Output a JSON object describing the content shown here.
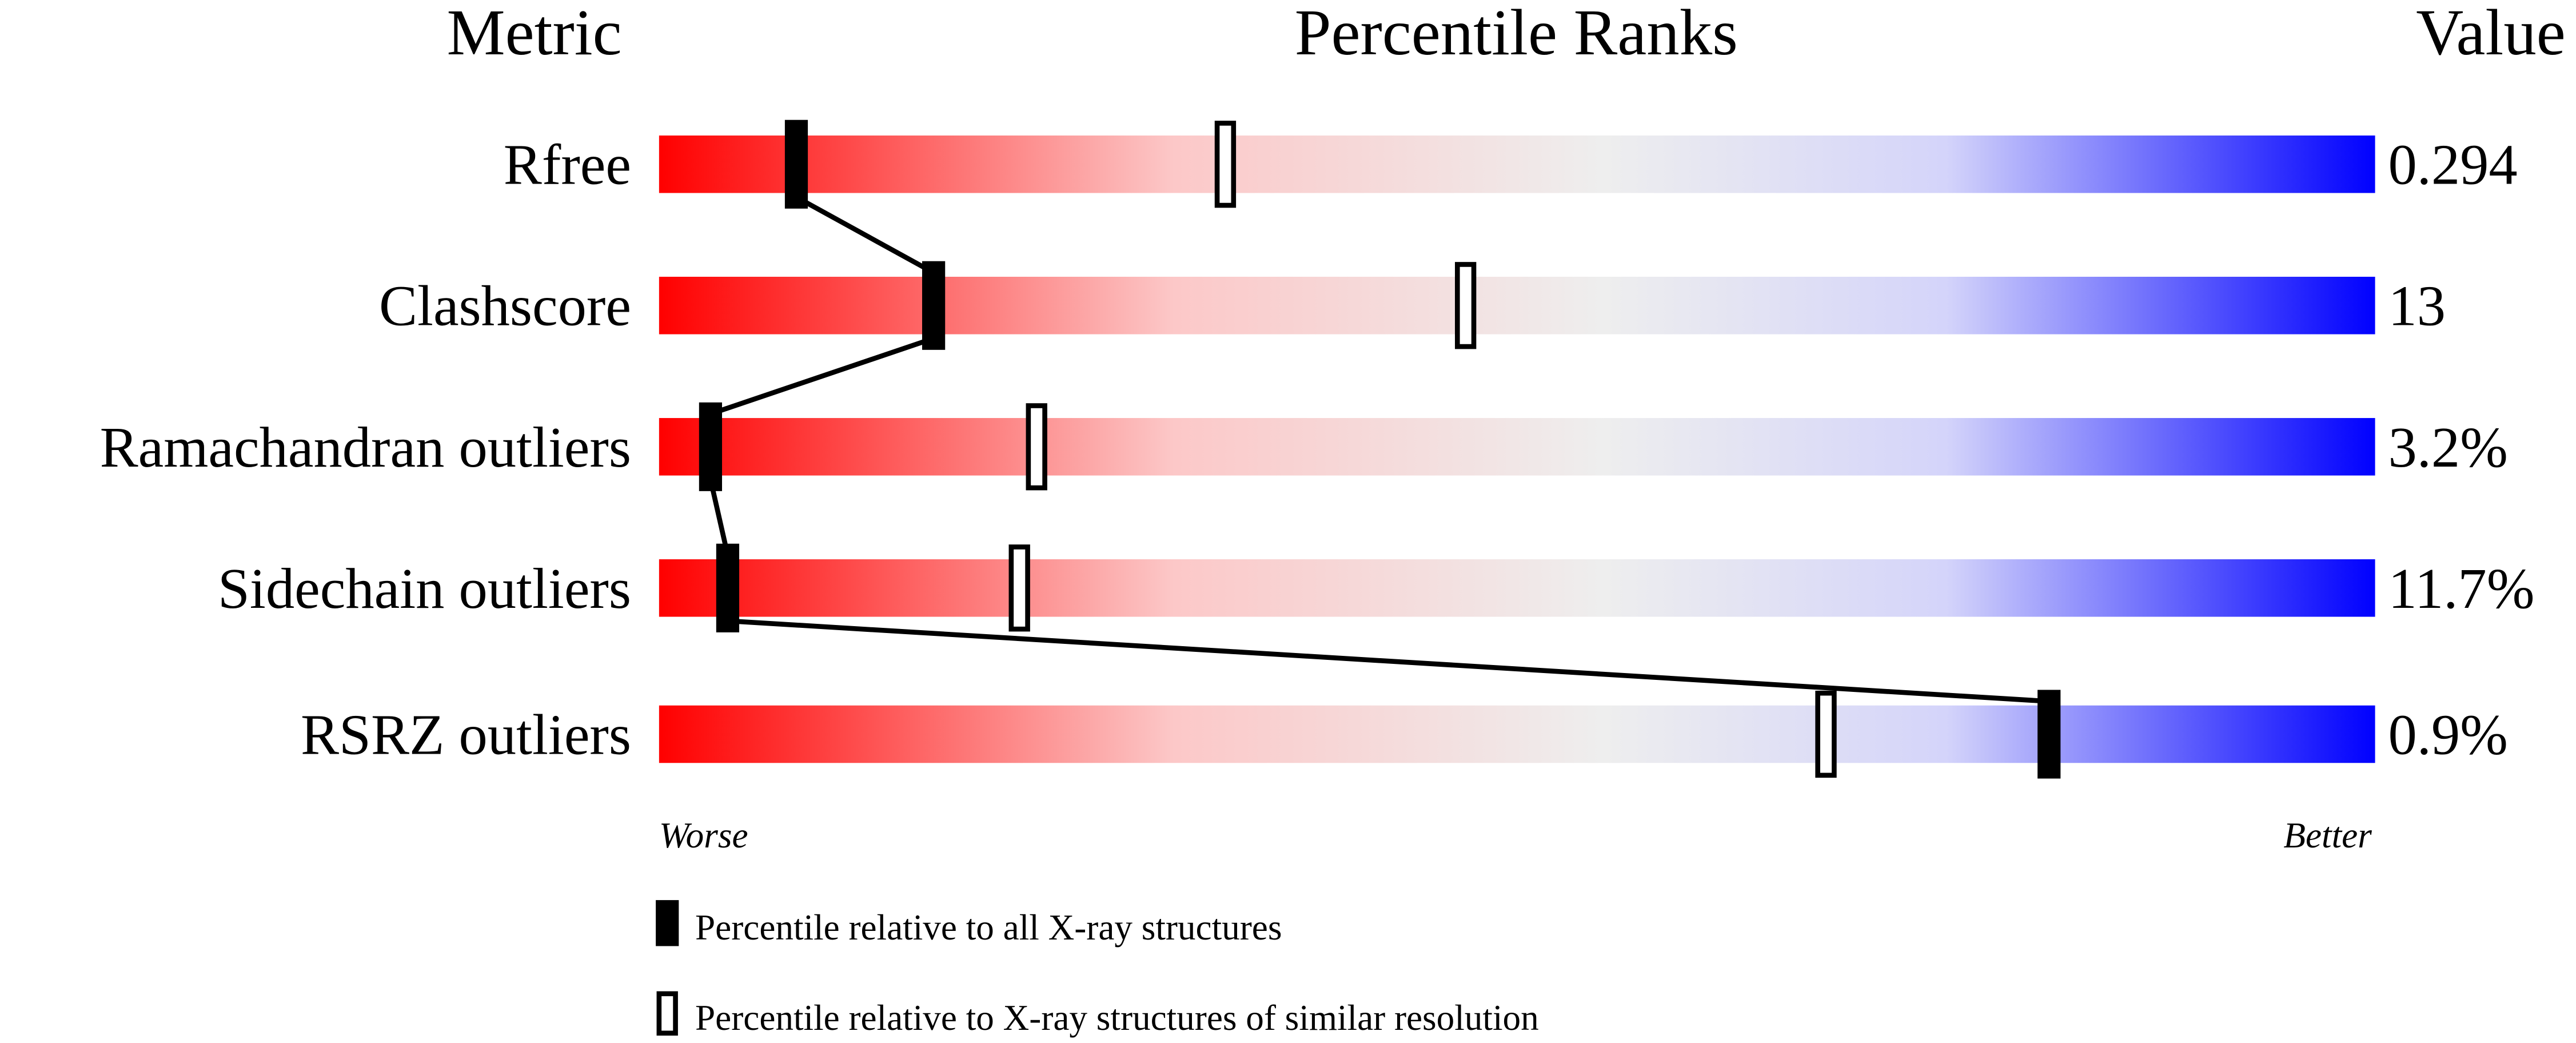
{
  "chart_data": {
    "type": "percentile-bars",
    "headers": {
      "metric": "Metric",
      "title": "Percentile Ranks",
      "value": "Value"
    },
    "xlim": [
      0,
      100
    ],
    "axis_left": "Worse",
    "axis_right": "Better",
    "gradient_colors": [
      "#ff0000",
      "#fcc8c8",
      "#eeeeee",
      "#d4d4fa",
      "#0000ff"
    ],
    "rows": [
      {
        "metric": "Rfree",
        "value": "0.294",
        "percentile_all": 8,
        "percentile_similar": 33
      },
      {
        "metric": "Clashscore",
        "value": "13",
        "percentile_all": 16,
        "percentile_similar": 47
      },
      {
        "metric": "Ramachandran outliers",
        "value": "3.2%",
        "percentile_all": 3,
        "percentile_similar": 22
      },
      {
        "metric": "Sidechain outliers",
        "value": "11.7%",
        "percentile_all": 4,
        "percentile_similar": 21
      },
      {
        "metric": "RSRZ outliers",
        "value": "0.9%",
        "percentile_all": 81,
        "percentile_similar": 68
      }
    ],
    "legend": [
      {
        "marker": "filled",
        "label": "Percentile relative to all X-ray structures"
      },
      {
        "marker": "open",
        "label": "Percentile relative to X-ray structures of similar resolution"
      }
    ]
  }
}
